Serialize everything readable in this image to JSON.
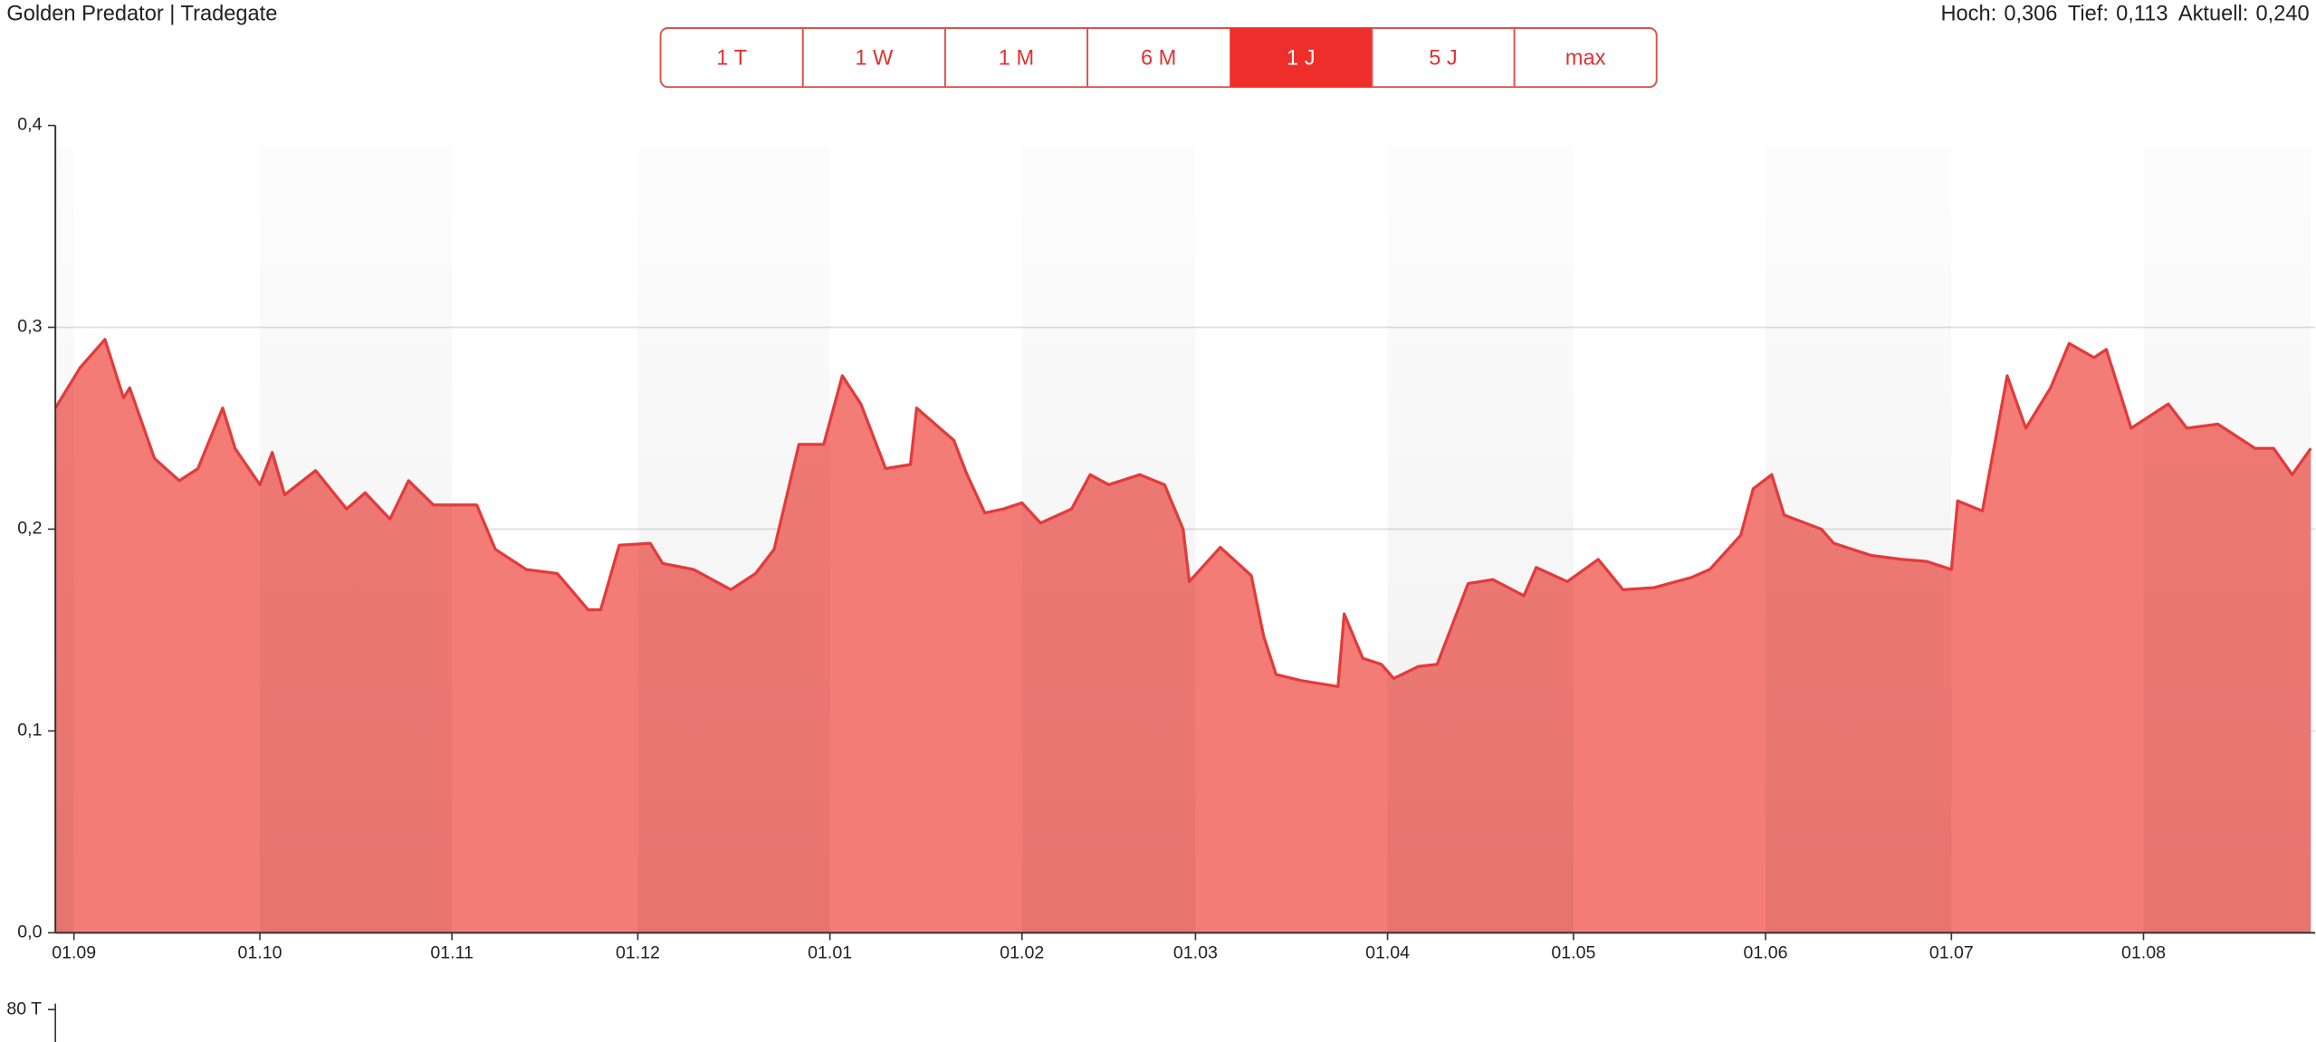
{
  "header": {
    "title": "Golden Predator | Tradegate",
    "stats": [
      {
        "label": "Hoch:",
        "value": "0,306"
      },
      {
        "label": "Tief:",
        "value": "0,113"
      },
      {
        "label": "Aktuell:",
        "value": "0,240"
      }
    ]
  },
  "buttons": [
    "1 T",
    "1 W",
    "1 M",
    "6 M",
    "1 J",
    "5 J",
    "max"
  ],
  "active_button": "1 J",
  "volume": {
    "label": "80 T"
  },
  "chart_data": {
    "type": "area",
    "color": "#e23b3b",
    "fill": "#f47c77",
    "x": [
      "29.08",
      "02.09",
      "06.09",
      "09.09",
      "10.09",
      "14.09",
      "18.09",
      "21.09",
      "25.09",
      "27.09",
      "01.10",
      "03.10",
      "05.10",
      "10.10",
      "15.10",
      "18.10",
      "22.10",
      "25.10",
      "29.10",
      "05.11",
      "08.11",
      "13.11",
      "18.11",
      "23.11",
      "25.11",
      "28.11",
      "03.12",
      "05.12",
      "10.12",
      "16.12",
      "20.12",
      "23.12",
      "27.12",
      "31.12",
      "03.01",
      "06.01",
      "10.01",
      "14.01",
      "15.01",
      "21.01",
      "23.01",
      "26.01",
      "29.01",
      "01.02",
      "04.02",
      "09.02",
      "12.02",
      "15.02",
      "20.02",
      "24.02",
      "27.02",
      "28.02",
      "05.03",
      "10.03",
      "12.03",
      "14.03",
      "18.03",
      "24.03",
      "25.03",
      "28.03",
      "31.03",
      "02.04",
      "06.04",
      "09.04",
      "14.04",
      "18.04",
      "23.04",
      "25.04",
      "30.04",
      "05.05",
      "09.05",
      "14.05",
      "20.05",
      "23.05",
      "28.05",
      "30.05",
      "02.06",
      "04.06",
      "10.06",
      "12.06",
      "18.06",
      "23.06",
      "27.06",
      "01.07",
      "02.07",
      "06.07",
      "10.07",
      "13.07",
      "17.07",
      "20.07",
      "24.07",
      "26.07",
      "30.07",
      "05.08",
      "08.08",
      "13.08",
      "19.08",
      "22.08",
      "25.08",
      "28.08"
    ],
    "values": [
      0.26,
      0.28,
      0.294,
      0.265,
      0.27,
      0.235,
      0.224,
      0.23,
      0.26,
      0.24,
      0.222,
      0.238,
      0.217,
      0.229,
      0.21,
      0.218,
      0.205,
      0.224,
      0.212,
      0.212,
      0.19,
      0.18,
      0.178,
      0.16,
      0.16,
      0.192,
      0.193,
      0.183,
      0.18,
      0.17,
      0.178,
      0.19,
      0.242,
      0.242,
      0.276,
      0.262,
      0.23,
      0.232,
      0.26,
      0.244,
      0.228,
      0.208,
      0.21,
      0.213,
      0.203,
      0.21,
      0.227,
      0.222,
      0.227,
      0.222,
      0.2,
      0.174,
      0.191,
      0.177,
      0.147,
      0.128,
      0.125,
      0.122,
      0.158,
      0.136,
      0.133,
      0.126,
      0.132,
      0.133,
      0.173,
      0.175,
      0.167,
      0.181,
      0.174,
      0.185,
      0.17,
      0.171,
      0.176,
      0.18,
      0.197,
      0.22,
      0.227,
      0.207,
      0.2,
      0.193,
      0.187,
      0.185,
      0.184,
      0.18,
      0.214,
      0.209,
      0.276,
      0.25,
      0.27,
      0.292,
      0.285,
      0.289,
      0.25,
      0.262,
      0.25,
      0.252,
      0.24,
      0.24,
      0.227,
      0.24
    ],
    "xlim": [
      "29.08",
      "28.08"
    ],
    "xticks": [
      "01.09",
      "01.10",
      "01.11",
      "01.12",
      "01.01",
      "01.02",
      "01.03",
      "01.04",
      "01.05",
      "01.06",
      "01.07",
      "01.08"
    ],
    "ylim": [
      0,
      0.4
    ],
    "yticks": [
      {
        "value": 0,
        "label": "0,0"
      },
      {
        "value": 0.1,
        "label": "0,1"
      },
      {
        "value": 0.2,
        "label": "0,2"
      },
      {
        "value": 0.3,
        "label": "0,3"
      },
      {
        "value": 0.4,
        "label": "0,4"
      }
    ],
    "grid": true
  }
}
